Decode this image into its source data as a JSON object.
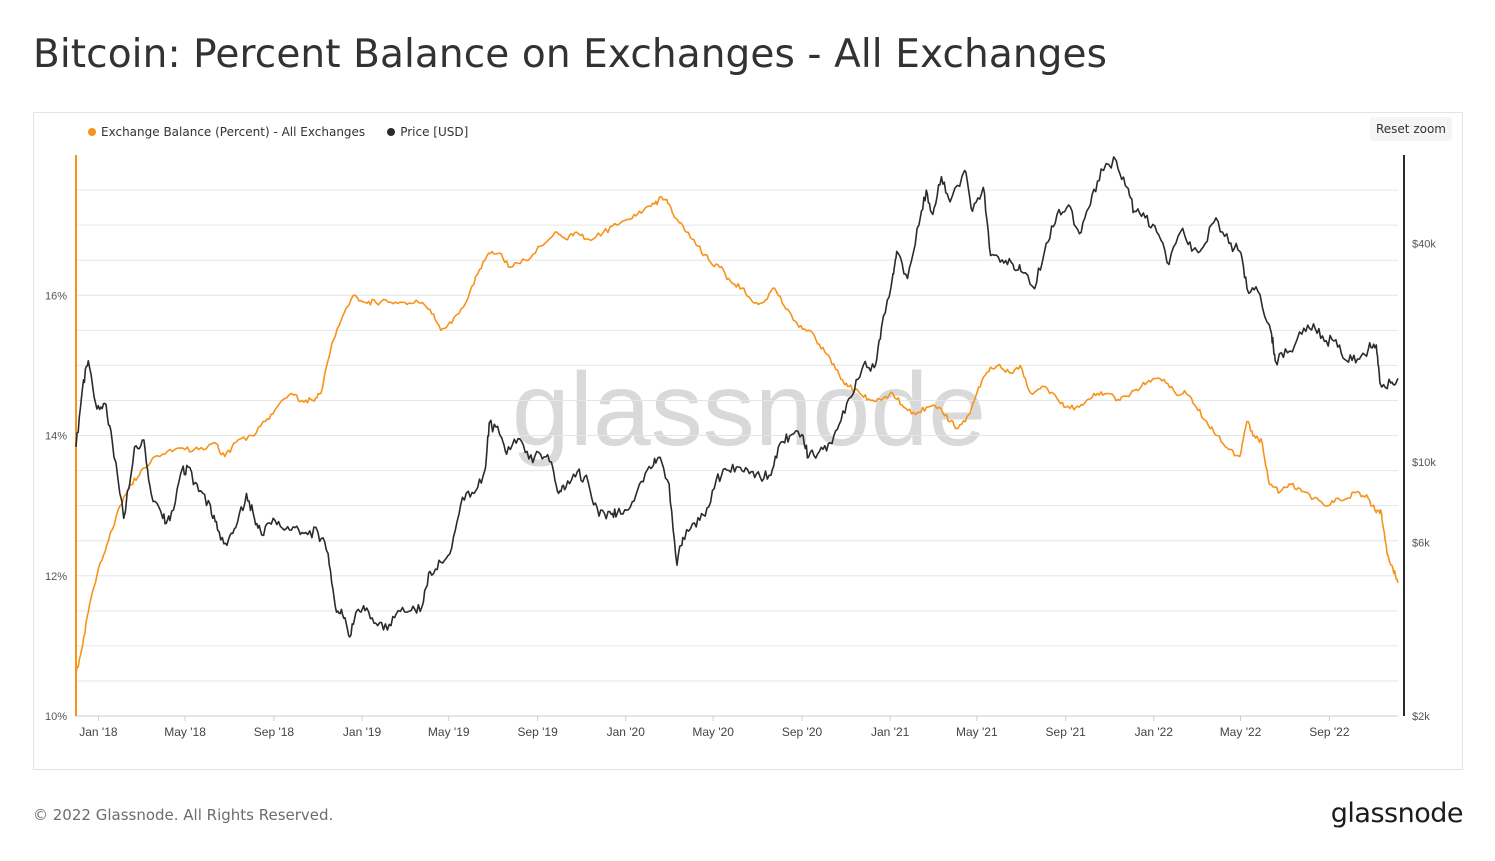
{
  "title": "Bitcoin: Percent Balance on Exchanges - All Exchanges",
  "footer": {
    "copyright": "© 2022 Glassnode. All Rights Reserved.",
    "logo": "glassnode"
  },
  "watermark": "glassnode",
  "reset_zoom_label": "Reset zoom",
  "colors": {
    "exchange_balance": "#f7931a",
    "price": "#2b2b2b",
    "grid": "#e6e6e6",
    "watermark": "#d9d9d9"
  },
  "chart_data": {
    "type": "line",
    "title": "Bitcoin: Percent Balance on Exchanges - All Exchanges",
    "legend": {
      "placement": "top-left",
      "entries": [
        {
          "name": "Exchange Balance (Percent) - All Exchanges",
          "color": "#f7931a"
        },
        {
          "name": "Price [USD]",
          "color": "#2b2b2b"
        }
      ]
    },
    "x_ticks": [
      "Jan '18",
      "May '18",
      "Sep '18",
      "Jan '19",
      "May '19",
      "Sep '19",
      "Jan '20",
      "May '20",
      "Sep '20",
      "Jan '21",
      "May '21",
      "Sep '21",
      "Jan '22",
      "May '22",
      "Sep '22"
    ],
    "x_range": [
      "2017-12-01",
      "2022-12-05"
    ],
    "y_left": {
      "label": "",
      "ticks": [
        "10%",
        "12%",
        "14%",
        "16%"
      ],
      "range": [
        10,
        18
      ]
    },
    "y_right": {
      "label": "",
      "scale": "log",
      "ticks": [
        "$2k",
        "$6k",
        "$10k",
        "$40k"
      ],
      "range": [
        2000,
        70000
      ]
    },
    "grid": true,
    "series": [
      {
        "name": "Exchange Balance (Percent) - All Exchanges",
        "axis": "left",
        "unit": "%",
        "points": [
          [
            "2017-12-01",
            10.6
          ],
          [
            "2017-12-10",
            11.0
          ],
          [
            "2017-12-20",
            11.6
          ],
          [
            "2018-01-01",
            12.1
          ],
          [
            "2018-01-15",
            12.5
          ],
          [
            "2018-01-31",
            13.0
          ],
          [
            "2018-02-15",
            13.3
          ],
          [
            "2018-03-01",
            13.5
          ],
          [
            "2018-03-20",
            13.7
          ],
          [
            "2018-04-10",
            13.8
          ],
          [
            "2018-05-01",
            13.8
          ],
          [
            "2018-05-20",
            13.8
          ],
          [
            "2018-06-10",
            13.9
          ],
          [
            "2018-06-25",
            13.7
          ],
          [
            "2018-07-10",
            13.9
          ],
          [
            "2018-08-01",
            14.0
          ],
          [
            "2018-08-20",
            14.2
          ],
          [
            "2018-09-05",
            14.4
          ],
          [
            "2018-09-25",
            14.6
          ],
          [
            "2018-10-10",
            14.5
          ],
          [
            "2018-10-25",
            14.5
          ],
          [
            "2018-11-05",
            14.6
          ],
          [
            "2018-11-20",
            15.3
          ],
          [
            "2018-12-05",
            15.7
          ],
          [
            "2018-12-20",
            16.0
          ],
          [
            "2019-01-05",
            15.9
          ],
          [
            "2019-01-20",
            15.9
          ],
          [
            "2019-02-10",
            15.9
          ],
          [
            "2019-03-01",
            15.9
          ],
          [
            "2019-03-20",
            15.9
          ],
          [
            "2019-04-05",
            15.8
          ],
          [
            "2019-04-20",
            15.5
          ],
          [
            "2019-05-05",
            15.6
          ],
          [
            "2019-05-25",
            15.9
          ],
          [
            "2019-06-10",
            16.3
          ],
          [
            "2019-06-25",
            16.6
          ],
          [
            "2019-07-10",
            16.6
          ],
          [
            "2019-07-25",
            16.4
          ],
          [
            "2019-08-15",
            16.5
          ],
          [
            "2019-09-05",
            16.7
          ],
          [
            "2019-09-25",
            16.9
          ],
          [
            "2019-10-10",
            16.8
          ],
          [
            "2019-10-25",
            16.9
          ],
          [
            "2019-11-10",
            16.8
          ],
          [
            "2019-12-01",
            16.9
          ],
          [
            "2019-12-20",
            17.0
          ],
          [
            "2020-01-10",
            17.1
          ],
          [
            "2020-01-25",
            17.2
          ],
          [
            "2020-02-10",
            17.3
          ],
          [
            "2020-02-20",
            17.4
          ],
          [
            "2020-03-01",
            17.3
          ],
          [
            "2020-03-10",
            17.1
          ],
          [
            "2020-03-25",
            16.9
          ],
          [
            "2020-04-10",
            16.7
          ],
          [
            "2020-04-25",
            16.5
          ],
          [
            "2020-05-10",
            16.4
          ],
          [
            "2020-05-25",
            16.2
          ],
          [
            "2020-06-10",
            16.1
          ],
          [
            "2020-06-25",
            15.9
          ],
          [
            "2020-07-10",
            15.9
          ],
          [
            "2020-07-25",
            16.1
          ],
          [
            "2020-08-10",
            15.8
          ],
          [
            "2020-08-25",
            15.6
          ],
          [
            "2020-09-10",
            15.5
          ],
          [
            "2020-09-25",
            15.3
          ],
          [
            "2020-10-10",
            15.1
          ],
          [
            "2020-10-25",
            14.8
          ],
          [
            "2020-11-05",
            14.7
          ],
          [
            "2020-11-20",
            14.6
          ],
          [
            "2020-12-05",
            14.5
          ],
          [
            "2020-12-20",
            14.5
          ],
          [
            "2021-01-05",
            14.6
          ],
          [
            "2021-01-20",
            14.4
          ],
          [
            "2021-02-05",
            14.3
          ],
          [
            "2021-02-20",
            14.4
          ],
          [
            "2021-03-10",
            14.4
          ],
          [
            "2021-03-25",
            14.2
          ],
          [
            "2021-04-05",
            14.1
          ],
          [
            "2021-04-20",
            14.3
          ],
          [
            "2021-05-01",
            14.6
          ],
          [
            "2021-05-15",
            14.9
          ],
          [
            "2021-05-30",
            15.0
          ],
          [
            "2021-06-15",
            14.9
          ],
          [
            "2021-06-30",
            15.0
          ],
          [
            "2021-07-15",
            14.6
          ],
          [
            "2021-07-30",
            14.7
          ],
          [
            "2021-08-15",
            14.6
          ],
          [
            "2021-08-30",
            14.4
          ],
          [
            "2021-09-15",
            14.4
          ],
          [
            "2021-09-30",
            14.5
          ],
          [
            "2021-10-15",
            14.6
          ],
          [
            "2021-10-30",
            14.6
          ],
          [
            "2021-11-15",
            14.5
          ],
          [
            "2021-11-30",
            14.6
          ],
          [
            "2021-12-15",
            14.7
          ],
          [
            "2021-12-30",
            14.8
          ],
          [
            "2022-01-15",
            14.8
          ],
          [
            "2022-01-31",
            14.6
          ],
          [
            "2022-02-15",
            14.6
          ],
          [
            "2022-03-01",
            14.4
          ],
          [
            "2022-03-15",
            14.2
          ],
          [
            "2022-03-30",
            14.0
          ],
          [
            "2022-04-15",
            13.8
          ],
          [
            "2022-04-30",
            13.7
          ],
          [
            "2022-05-10",
            14.2
          ],
          [
            "2022-05-20",
            14.0
          ],
          [
            "2022-05-31",
            13.9
          ],
          [
            "2022-06-10",
            13.3
          ],
          [
            "2022-06-25",
            13.2
          ],
          [
            "2022-07-10",
            13.3
          ],
          [
            "2022-07-25",
            13.2
          ],
          [
            "2022-08-10",
            13.1
          ],
          [
            "2022-08-25",
            13.0
          ],
          [
            "2022-09-10",
            13.1
          ],
          [
            "2022-09-25",
            13.1
          ],
          [
            "2022-10-10",
            13.2
          ],
          [
            "2022-10-25",
            13.1
          ],
          [
            "2022-11-05",
            12.9
          ],
          [
            "2022-11-12",
            12.9
          ],
          [
            "2022-11-20",
            12.3
          ],
          [
            "2022-11-28",
            12.1
          ],
          [
            "2022-12-05",
            11.9
          ]
        ]
      },
      {
        "name": "Price [USD]",
        "axis": "right",
        "unit": "USD",
        "points": [
          [
            "2017-12-01",
            11000
          ],
          [
            "2017-12-10",
            16000
          ],
          [
            "2017-12-18",
            19000
          ],
          [
            "2017-12-30",
            14000
          ],
          [
            "2018-01-10",
            14500
          ],
          [
            "2018-01-20",
            11500
          ],
          [
            "2018-02-05",
            7000
          ],
          [
            "2018-02-20",
            11000
          ],
          [
            "2018-03-05",
            11500
          ],
          [
            "2018-03-15",
            8200
          ],
          [
            "2018-03-31",
            7000
          ],
          [
            "2018-04-10",
            6900
          ],
          [
            "2018-04-25",
            9300
          ],
          [
            "2018-05-05",
            9700
          ],
          [
            "2018-05-20",
            8300
          ],
          [
            "2018-06-05",
            7600
          ],
          [
            "2018-06-15",
            6500
          ],
          [
            "2018-06-28",
            5900
          ],
          [
            "2018-07-10",
            6600
          ],
          [
            "2018-07-25",
            8200
          ],
          [
            "2018-08-05",
            7000
          ],
          [
            "2018-08-15",
            6300
          ],
          [
            "2018-08-31",
            7000
          ],
          [
            "2018-09-15",
            6500
          ],
          [
            "2018-09-30",
            6600
          ],
          [
            "2018-10-15",
            6400
          ],
          [
            "2018-11-01",
            6400
          ],
          [
            "2018-11-15",
            5600
          ],
          [
            "2018-11-25",
            4000
          ],
          [
            "2018-12-05",
            3800
          ],
          [
            "2018-12-15",
            3300
          ],
          [
            "2018-12-25",
            3900
          ],
          [
            "2019-01-05",
            3900
          ],
          [
            "2019-01-20",
            3600
          ],
          [
            "2019-02-05",
            3450
          ],
          [
            "2019-02-20",
            3900
          ],
          [
            "2019-03-10",
            3900
          ],
          [
            "2019-03-25",
            4000
          ],
          [
            "2019-04-05",
            5000
          ],
          [
            "2019-04-20",
            5300
          ],
          [
            "2019-05-05",
            5800
          ],
          [
            "2019-05-20",
            8000
          ],
          [
            "2019-06-05",
            8200
          ],
          [
            "2019-06-20",
            9500
          ],
          [
            "2019-06-26",
            12800
          ],
          [
            "2019-07-10",
            12000
          ],
          [
            "2019-07-20",
            10500
          ],
          [
            "2019-08-05",
            11600
          ],
          [
            "2019-08-20",
            10200
          ],
          [
            "2019-09-05",
            10500
          ],
          [
            "2019-09-20",
            10000
          ],
          [
            "2019-09-30",
            8200
          ],
          [
            "2019-10-10",
            8500
          ],
          [
            "2019-10-26",
            9400
          ],
          [
            "2019-11-10",
            8800
          ],
          [
            "2019-11-25",
            7100
          ],
          [
            "2019-12-10",
            7300
          ],
          [
            "2019-12-20",
            7200
          ],
          [
            "2020-01-05",
            7400
          ],
          [
            "2020-01-20",
            8700
          ],
          [
            "2020-02-05",
            9600
          ],
          [
            "2020-02-15",
            10300
          ],
          [
            "2020-03-01",
            8700
          ],
          [
            "2020-03-12",
            5200
          ],
          [
            "2020-03-20",
            6200
          ],
          [
            "2020-04-05",
            6800
          ],
          [
            "2020-04-20",
            7100
          ],
          [
            "2020-05-05",
            8900
          ],
          [
            "2020-05-20",
            9500
          ],
          [
            "2020-06-05",
            9700
          ],
          [
            "2020-06-20",
            9300
          ],
          [
            "2020-07-05",
            9100
          ],
          [
            "2020-07-20",
            9200
          ],
          [
            "2020-08-01",
            11200
          ],
          [
            "2020-08-15",
            11800
          ],
          [
            "2020-09-01",
            11900
          ],
          [
            "2020-09-10",
            10300
          ],
          [
            "2020-09-25",
            10700
          ],
          [
            "2020-10-10",
            11300
          ],
          [
            "2020-10-25",
            13000
          ],
          [
            "2020-11-10",
            15300
          ],
          [
            "2020-11-25",
            18500
          ],
          [
            "2020-12-10",
            18200
          ],
          [
            "2020-12-20",
            23500
          ],
          [
            "2021-01-05",
            33000
          ],
          [
            "2021-01-10",
            38000
          ],
          [
            "2021-01-25",
            32000
          ],
          [
            "2021-02-10",
            45000
          ],
          [
            "2021-02-20",
            56000
          ],
          [
            "2021-03-01",
            48000
          ],
          [
            "2021-03-13",
            61000
          ],
          [
            "2021-03-25",
            52000
          ],
          [
            "2021-04-14",
            63500
          ],
          [
            "2021-04-25",
            49000
          ],
          [
            "2021-05-10",
            57000
          ],
          [
            "2021-05-20",
            37000
          ],
          [
            "2021-06-05",
            36000
          ],
          [
            "2021-06-20",
            35000
          ],
          [
            "2021-07-01",
            33500
          ],
          [
            "2021-07-20",
            30000
          ],
          [
            "2021-08-05",
            40000
          ],
          [
            "2021-08-20",
            48000
          ],
          [
            "2021-09-05",
            51000
          ],
          [
            "2021-09-20",
            42500
          ],
          [
            "2021-10-05",
            51000
          ],
          [
            "2021-10-20",
            64000
          ],
          [
            "2021-11-10",
            67500
          ],
          [
            "2021-11-25",
            57000
          ],
          [
            "2021-12-05",
            49000
          ],
          [
            "2021-12-20",
            47000
          ],
          [
            "2022-01-05",
            43000
          ],
          [
            "2022-01-22",
            35000
          ],
          [
            "2022-02-10",
            44000
          ],
          [
            "2022-02-25",
            38500
          ],
          [
            "2022-03-10",
            39000
          ],
          [
            "2022-03-28",
            47000
          ],
          [
            "2022-04-15",
            40000
          ],
          [
            "2022-04-30",
            38000
          ],
          [
            "2022-05-10",
            30000
          ],
          [
            "2022-05-25",
            29500
          ],
          [
            "2022-06-13",
            22500
          ],
          [
            "2022-06-18",
            19000
          ],
          [
            "2022-07-05",
            20000
          ],
          [
            "2022-07-25",
            22500
          ],
          [
            "2022-08-10",
            24000
          ],
          [
            "2022-08-25",
            21500
          ],
          [
            "2022-09-10",
            21700
          ],
          [
            "2022-09-25",
            19000
          ],
          [
            "2022-10-10",
            19200
          ],
          [
            "2022-10-25",
            20500
          ],
          [
            "2022-11-05",
            21000
          ],
          [
            "2022-11-10",
            16500
          ],
          [
            "2022-11-25",
            16500
          ],
          [
            "2022-12-05",
            17000
          ]
        ]
      }
    ]
  }
}
